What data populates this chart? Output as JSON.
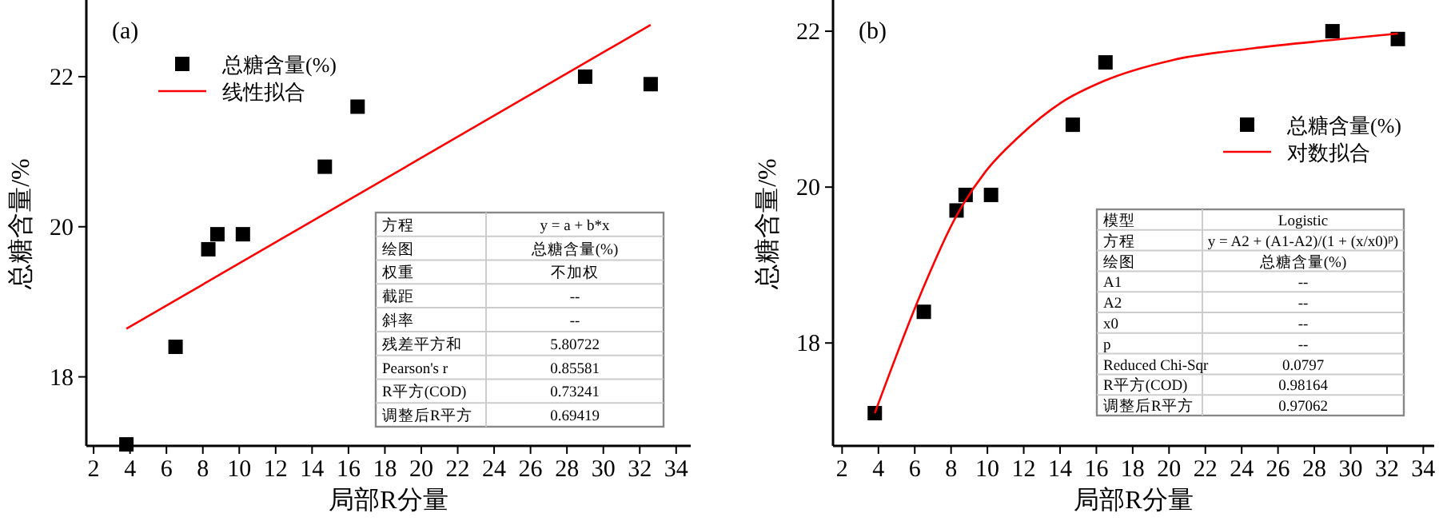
{
  "chart_data": [
    {
      "type": "scatter",
      "xlabel": "局部R分量",
      "ylabel": "总糖含量/%",
      "xlim": [
        1.6,
        34.8
      ],
      "ylim": [
        17.08,
        23
      ],
      "xticks": [
        2,
        4,
        6,
        8,
        10,
        12,
        14,
        16,
        18,
        20,
        22,
        24,
        26,
        28,
        30,
        32,
        34
      ],
      "yticks": [
        18,
        20,
        22
      ],
      "legend": "top left",
      "grid": false,
      "series": [
        {
          "name": "总糖含量(%)",
          "marker": "square",
          "color": "#000000",
          "x": [
            3.8,
            6.5,
            8.3,
            8.8,
            10.2,
            14.7,
            16.5,
            29.0,
            32.6
          ],
          "values": [
            17.1,
            18.4,
            19.7,
            19.9,
            19.9,
            20.8,
            21.6,
            22.0,
            21.9
          ]
        },
        {
          "name": "线性拟合",
          "type": "line",
          "color": "#ff0000",
          "x": [
            3.8,
            32.6
          ],
          "values": [
            18.64,
            22.69
          ]
        }
      ],
      "annotations": [
        "(a)",
        "方程",
        "y = a + b*x",
        "绘图",
        "总糖含量(%)",
        "权重",
        "不加权",
        "截距",
        "--",
        "斜率",
        "--",
        "残差平方和",
        "5.80722",
        "Pearson's r",
        "0.85581",
        "R平方(COD)",
        "0.73241",
        "调整后R平方",
        "0.69419"
      ]
    },
    {
      "type": "scatter",
      "xlabel": "局部R分量",
      "ylabel": "总糖含量/%",
      "xlim": [
        1.5,
        34.6
      ],
      "ylim": [
        16.68,
        22.38
      ],
      "xticks": [
        2,
        4,
        6,
        8,
        10,
        12,
        14,
        16,
        18,
        20,
        22,
        24,
        26,
        28,
        30,
        32,
        34
      ],
      "yticks": [
        18,
        20,
        22
      ],
      "legend": "right",
      "grid": false,
      "series": [
        {
          "name": "总糖含量(%)",
          "marker": "square",
          "color": "#000000",
          "x": [
            3.8,
            6.5,
            8.3,
            8.8,
            10.2,
            14.7,
            16.5,
            29.0,
            32.6
          ],
          "values": [
            17.1,
            18.4,
            19.7,
            19.9,
            19.9,
            20.8,
            21.6,
            22.0,
            21.9
          ]
        },
        {
          "name": "对数拟合",
          "type": "line",
          "color": "#ff0000",
          "x": [
            3.8,
            6.4,
            8.2,
            9.9,
            11.7,
            14.1,
            16.4,
            20.2,
            24.6,
            29.1,
            32.6
          ],
          "values": [
            17.1,
            18.67,
            19.59,
            20.2,
            20.64,
            21.09,
            21.36,
            21.63,
            21.78,
            21.89,
            21.97
          ]
        }
      ],
      "annotations": [
        "(b)",
        "模型",
        "Logistic",
        "方程",
        "y = A2 + (A1-A2)/(1 + (x/x0)$^{p}$)",
        "绘图",
        "总糖含量(%)",
        "A1",
        "--",
        "A2",
        "--",
        "x0",
        "--",
        "p",
        "--",
        "Reduced Chi-Sqr",
        "0.0797",
        "R平方(COD)",
        "0.98164",
        "调整后R平方",
        "0.97062"
      ]
    }
  ]
}
